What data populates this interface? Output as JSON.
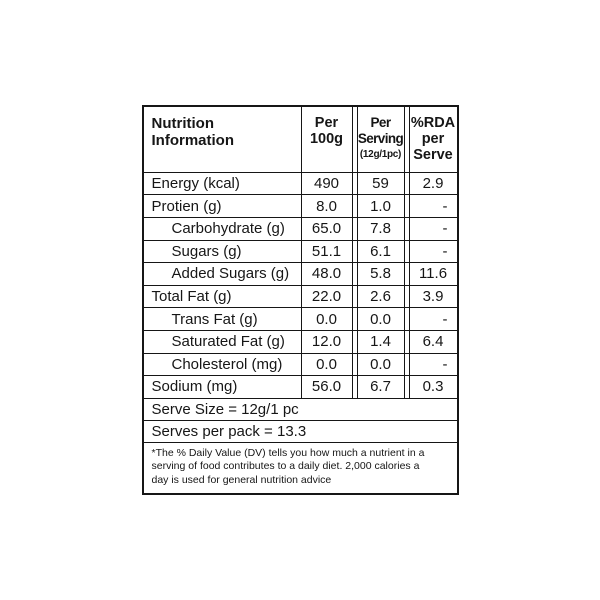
{
  "table": {
    "header": {
      "label": "Nutrition Information",
      "per_100g": "Per 100g",
      "per_serving": "Per Serving",
      "per_serving_sub": "(12g/1pc)",
      "rda": "%RDA per Serve"
    },
    "rows": [
      {
        "label": "Energy (kcal)",
        "indent": false,
        "per_100g": "490",
        "per_serving": "59",
        "rda": "2.9"
      },
      {
        "label": "Protien (g)",
        "indent": false,
        "per_100g": "8.0",
        "per_serving": "1.0",
        "rda": "-"
      },
      {
        "label": "Carbohydrate (g)",
        "indent": true,
        "per_100g": "65.0",
        "per_serving": "7.8",
        "rda": "-"
      },
      {
        "label": "Sugars (g)",
        "indent": true,
        "per_100g": "51.1",
        "per_serving": "6.1",
        "rda": "-"
      },
      {
        "label": "Added Sugars (g)",
        "indent": true,
        "per_100g": "48.0",
        "per_serving": "5.8",
        "rda": "11.6"
      },
      {
        "label": "Total Fat (g)",
        "indent": false,
        "per_100g": "22.0",
        "per_serving": "2.6",
        "rda": "3.9"
      },
      {
        "label": "Trans Fat (g)",
        "indent": true,
        "per_100g": "0.0",
        "per_serving": "0.0",
        "rda": "-"
      },
      {
        "label": "Saturated Fat (g)",
        "indent": true,
        "per_100g": "12.0",
        "per_serving": "1.4",
        "rda": "6.4"
      },
      {
        "label": "Cholesterol (mg)",
        "indent": true,
        "per_100g": "0.0",
        "per_serving": "0.0",
        "rda": "-"
      },
      {
        "label": "Sodium (mg)",
        "indent": false,
        "per_100g": "56.0",
        "per_serving": "6.7",
        "rda": "0.3"
      }
    ],
    "serve_size": "Serve Size = 12g/1 pc",
    "serves_per_pack": "Serves per pack = 13.3",
    "footnote_lines": [
      "*The % Daily Value (DV) tells you how much a nutrient in a",
      "serving of food contributes to a daily diet. 2,000 calories a",
      "day is used for general nutrition advice"
    ]
  }
}
